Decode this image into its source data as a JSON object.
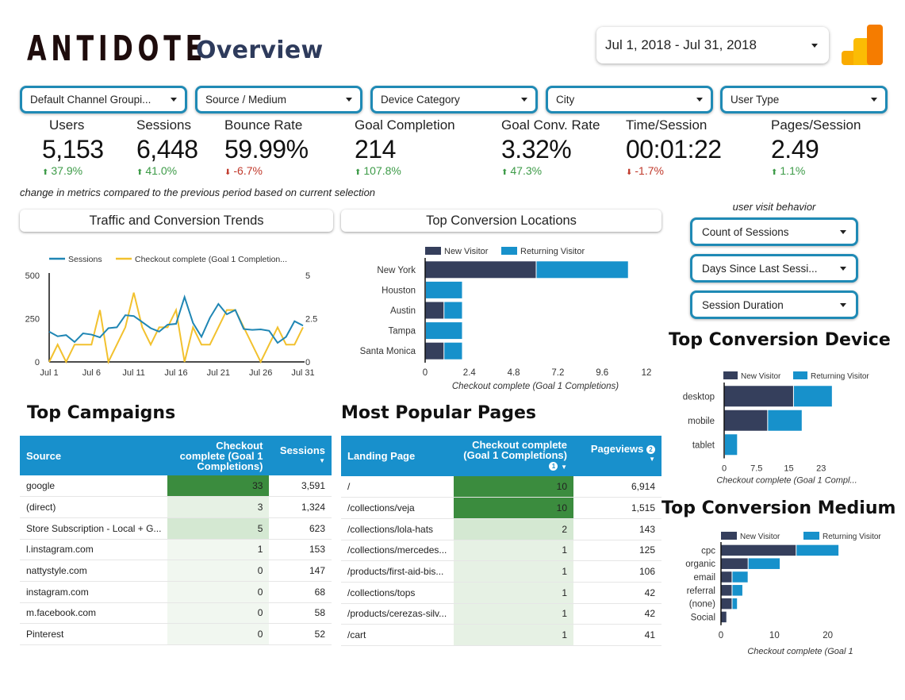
{
  "header": {
    "brand": "ANTIDOTE",
    "title": "Overview",
    "date_range": "Jul 1, 2018 - Jul 31, 2018",
    "logo": "google-analytics-logo"
  },
  "filters": [
    {
      "label": "Default Channel Groupi..."
    },
    {
      "label": "Source / Medium"
    },
    {
      "label": "Device Category"
    },
    {
      "label": "City"
    },
    {
      "label": "User Type"
    }
  ],
  "kpis": [
    {
      "label": "Users",
      "value": "5,153",
      "delta": "37.9%",
      "direction": "up"
    },
    {
      "label": "Sessions",
      "value": "6,448",
      "delta": "41.0%",
      "direction": "up"
    },
    {
      "label": "Bounce Rate",
      "value": "59.99%",
      "delta": "-6.7%",
      "direction": "down"
    },
    {
      "label": "Goal Completion",
      "value": "214",
      "delta": "107.8%",
      "direction": "up"
    },
    {
      "label": "Goal Conv. Rate",
      "value": "3.32%",
      "delta": "47.3%",
      "direction": "up"
    },
    {
      "label": "Time/Session",
      "value": "00:01:22",
      "delta": "-1.7%",
      "direction": "down"
    },
    {
      "label": "Pages/Session",
      "value": "2.49",
      "delta": "1.1%",
      "direction": "up"
    }
  ],
  "kpi_note": "change in metrics compared to the previous period based on current selection",
  "sections": {
    "traffic": "Traffic and Conversion Trends",
    "locations": "Top Conversion Locations",
    "campaigns": "Top Campaigns",
    "pages": "Most Popular Pages",
    "device": "Top Conversion Device",
    "medium": "Top Conversion Medium"
  },
  "visit_behavior": {
    "title": "user visit behavior",
    "filters": [
      {
        "label": "Count of Sessions"
      },
      {
        "label": "Days Since Last Sessi..."
      },
      {
        "label": "Session Duration"
      }
    ]
  },
  "colors": {
    "new_visitor": "#353f5c",
    "returning_visitor": "#1791cb",
    "sessions_line": "#1f86b4",
    "checkout_line": "#f2c12e",
    "table_header": "#1890cc",
    "heat_strong": "#3b8c3e",
    "heat_mid": "#d4e8d2",
    "heat_light": "#e6f1e4",
    "up": "#3d9b48",
    "down": "#c0392b"
  },
  "chart_data": [
    {
      "id": "traffic",
      "type": "line",
      "title": "Traffic and Conversion Trends",
      "x": [
        "Jul 1",
        "Jul 2",
        "Jul 3",
        "Jul 4",
        "Jul 5",
        "Jul 6",
        "Jul 7",
        "Jul 8",
        "Jul 9",
        "Jul 10",
        "Jul 11",
        "Jul 12",
        "Jul 13",
        "Jul 14",
        "Jul 15",
        "Jul 16",
        "Jul 17",
        "Jul 18",
        "Jul 19",
        "Jul 20",
        "Jul 21",
        "Jul 22",
        "Jul 23",
        "Jul 24",
        "Jul 25",
        "Jul 26",
        "Jul 27",
        "Jul 28",
        "Jul 29",
        "Jul 30",
        "Jul 31"
      ],
      "x_ticks": [
        "Jul 1",
        "Jul 6",
        "Jul 11",
        "Jul 16",
        "Jul 21",
        "Jul 26",
        "Jul 31"
      ],
      "series": [
        {
          "name": "Sessions",
          "axis": "left",
          "values": [
            175,
            148,
            155,
            115,
            165,
            158,
            142,
            195,
            200,
            270,
            265,
            230,
            195,
            175,
            215,
            220,
            375,
            225,
            145,
            255,
            335,
            275,
            300,
            190,
            185,
            188,
            180,
            110,
            145,
            235,
            210
          ]
        },
        {
          "name": "Checkout complete (Goal 1 Completion...",
          "axis": "right",
          "values": [
            0,
            1,
            0,
            1,
            1,
            1,
            3,
            0,
            1,
            2,
            4,
            2,
            1,
            2,
            2,
            3,
            0,
            2,
            1,
            1,
            2,
            3,
            3,
            2,
            1,
            0,
            1,
            2,
            1,
            1,
            2
          ]
        }
      ],
      "y_left": {
        "range": [
          0,
          500
        ],
        "ticks": [
          "0",
          "250",
          "500"
        ]
      },
      "y_right": {
        "range": [
          0,
          5
        ],
        "ticks": [
          "0",
          "2.5",
          "5"
        ]
      },
      "legend": "top"
    },
    {
      "id": "locations",
      "type": "bar",
      "orientation": "horizontal",
      "stacked": true,
      "title": "Top Conversion Locations",
      "categories": [
        "New York",
        "Houston",
        "Austin",
        "Tampa",
        "Santa Monica"
      ],
      "series": [
        {
          "name": "New Visitor",
          "values": [
            6,
            0,
            1,
            0,
            1
          ]
        },
        {
          "name": "Returning Visitor",
          "values": [
            5,
            2,
            1,
            2,
            1
          ]
        }
      ],
      "xlim": [
        0,
        12
      ],
      "x_ticks": [
        "0",
        "2.4",
        "4.8",
        "7.2",
        "9.6",
        "12"
      ],
      "xlabel": "Checkout complete (Goal 1 Completions)",
      "legend": "top"
    },
    {
      "id": "device",
      "type": "bar",
      "orientation": "horizontal",
      "stacked": true,
      "title": "Top Conversion Device",
      "categories": [
        "desktop",
        "mobile",
        "tablet"
      ],
      "series": [
        {
          "name": "New Visitor",
          "values": [
            16,
            10,
            0
          ]
        },
        {
          "name": "Returning Visitor",
          "values": [
            9,
            8,
            3
          ]
        }
      ],
      "xlim": [
        0,
        30
      ],
      "x_ticks": [
        "0",
        "7.5",
        "15",
        "23"
      ],
      "xlabel": "Checkout complete (Goal 1 Compl...",
      "legend": "top"
    },
    {
      "id": "medium",
      "type": "bar",
      "orientation": "horizontal",
      "stacked": true,
      "title": "Top Conversion Medium",
      "categories": [
        "cpc",
        "organic",
        "email",
        "referral",
        "(none)",
        "Social"
      ],
      "series": [
        {
          "name": "New Visitor",
          "values": [
            14,
            5,
            2,
            2,
            2,
            1
          ]
        },
        {
          "name": "Returning Visitor",
          "values": [
            8,
            6,
            3,
            2,
            1,
            0
          ]
        }
      ],
      "xlim": [
        0,
        30
      ],
      "x_ticks": [
        "0",
        "10",
        "20"
      ],
      "xlabel": "Checkout complete (Goal 1",
      "legend": "top"
    }
  ],
  "campaigns_table": {
    "columns": [
      "Source",
      "Checkout complete (Goal 1 Completions)",
      "Sessions"
    ],
    "sort_indicator": "▼",
    "rows": [
      {
        "source": "google",
        "checkout": "33",
        "sessions": "3,591",
        "heat": "strong"
      },
      {
        "source": "(direct)",
        "checkout": "3",
        "sessions": "1,324",
        "heat": "light"
      },
      {
        "source": "Store Subscription - Local + G...",
        "checkout": "5",
        "sessions": "623",
        "heat": "mid"
      },
      {
        "source": "l.instagram.com",
        "checkout": "1",
        "sessions": "153",
        "heat": "faint"
      },
      {
        "source": "nattystyle.com",
        "checkout": "0",
        "sessions": "147",
        "heat": "faint"
      },
      {
        "source": "instagram.com",
        "checkout": "0",
        "sessions": "68",
        "heat": "faint"
      },
      {
        "source": "m.facebook.com",
        "checkout": "0",
        "sessions": "58",
        "heat": "faint"
      },
      {
        "source": "Pinterest",
        "checkout": "0",
        "sessions": "52",
        "heat": "faint"
      }
    ]
  },
  "pages_table": {
    "columns": [
      "Landing Page",
      "Checkout complete (Goal 1 Completions)",
      "Pageviews"
    ],
    "info_badges": [
      "1",
      "2"
    ],
    "sort_indicator": "▼",
    "rows": [
      {
        "page": "/",
        "checkout": "10",
        "pageviews": "6,914",
        "heat": "strong"
      },
      {
        "page": "/collections/veja",
        "checkout": "10",
        "pageviews": "1,515",
        "heat": "strong"
      },
      {
        "page": "/collections/lola-hats",
        "checkout": "2",
        "pageviews": "143",
        "heat": "mid"
      },
      {
        "page": "/collections/mercedes...",
        "checkout": "1",
        "pageviews": "125",
        "heat": "light"
      },
      {
        "page": "/products/first-aid-bis...",
        "checkout": "1",
        "pageviews": "106",
        "heat": "light"
      },
      {
        "page": "/collections/tops",
        "checkout": "1",
        "pageviews": "42",
        "heat": "light"
      },
      {
        "page": "/products/cerezas-silv...",
        "checkout": "1",
        "pageviews": "42",
        "heat": "light"
      },
      {
        "page": "/cart",
        "checkout": "1",
        "pageviews": "41",
        "heat": "light"
      }
    ]
  }
}
